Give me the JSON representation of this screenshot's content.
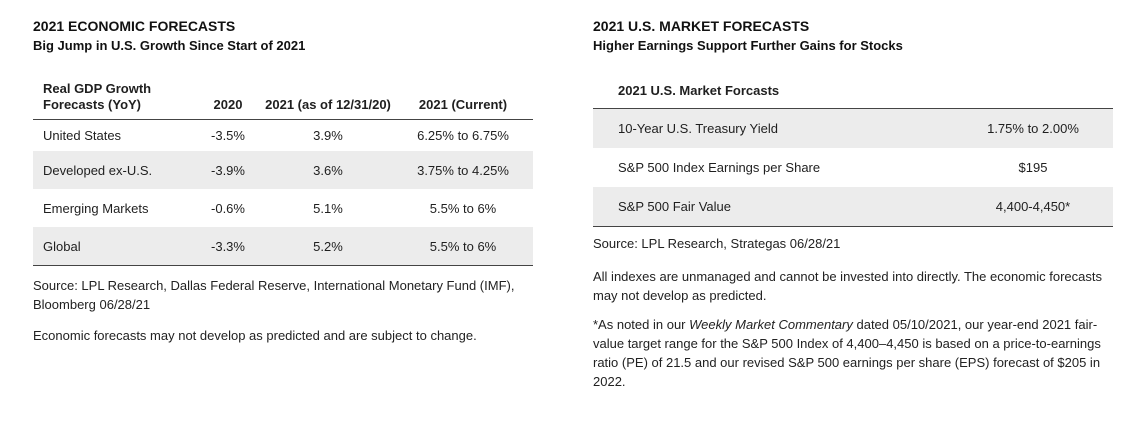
{
  "left": {
    "title": "2021 ECONOMIC FORECASTS",
    "subtitle": "Big Jump in U.S. Growth Since Start of 2021",
    "table": {
      "headers": [
        "Real GDP Growth Forecasts (YoY)",
        "2020",
        "2021 (as of 12/31/20)",
        "2021 (Current)"
      ],
      "rows": [
        [
          "United States",
          "-3.5%",
          "3.9%",
          "6.25% to 6.75%"
        ],
        [
          "Developed ex-U.S.",
          "-3.9%",
          "3.6%",
          "3.75% to 4.25%"
        ],
        [
          "Emerging Markets",
          "-0.6%",
          "5.1%",
          "5.5% to 6%"
        ],
        [
          "Global",
          "-3.3%",
          "5.2%",
          "5.5% to 6%"
        ]
      ]
    },
    "source": "Source: LPL Research, Dallas Federal Reserve, International Monetary Fund (IMF), Bloomberg  06/28/21",
    "note": "Economic forecasts may not develop as predicted and are subject to change."
  },
  "right": {
    "title": "2021 U.S. MARKET FORECASTS",
    "subtitle": "Higher Earnings Support Further Gains for Stocks",
    "table": {
      "header": "2021 U.S. Market Forcasts",
      "rows": [
        [
          "10-Year U.S. Treasury Yield",
          "1.75% to 2.00%"
        ],
        [
          "S&P 500 Index Earnings per Share",
          "$195"
        ],
        [
          "S&P 500 Fair Value",
          "4,400-4,450*"
        ]
      ]
    },
    "source": "Source: LPL Research, Strategas  06/28/21",
    "disclaimer": "All indexes are unmanaged and cannot be invested into directly. The economic forecasts may not develop as predicted.",
    "footnote_before": "*As noted in our ",
    "footnote_italic": "Weekly Market Commentary",
    "footnote_after": " dated 05/10/2021, our year-end 2021 fair-value target range for the S&P 500 Index of 4,400–4,450 is based on a price-to-earnings ratio (PE) of 21.5 and our revised S&P 500 earnings per share (EPS) forecast of $205 in 2022."
  }
}
